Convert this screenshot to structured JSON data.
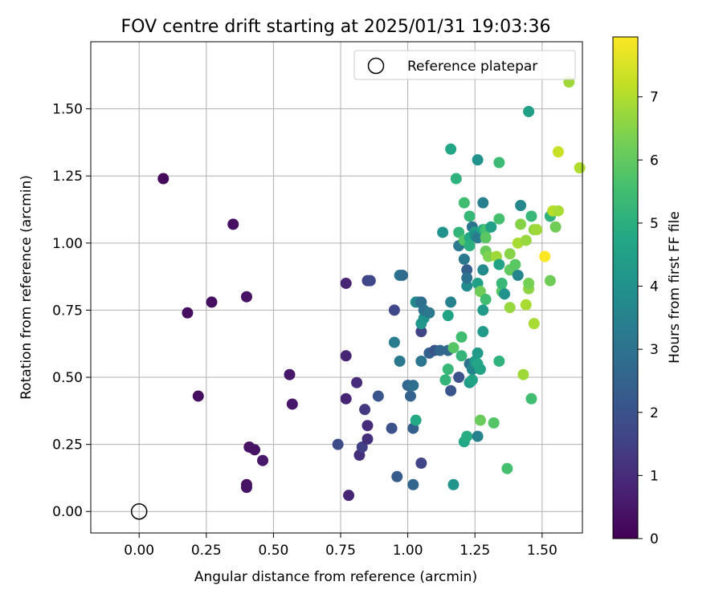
{
  "chart_data": {
    "type": "scatter",
    "title": "FOV centre drift starting at 2025/01/31 19:03:36",
    "xlabel": "Angular distance from reference (arcmin)",
    "ylabel": "Rotation from reference (arcmin)",
    "xlim": [
      -0.18,
      1.65
    ],
    "ylim": [
      -0.08,
      1.75
    ],
    "xticks": [
      "0.00",
      "0.25",
      "0.50",
      "0.75",
      "1.00",
      "1.25",
      "1.50"
    ],
    "yticks": [
      "0.00",
      "0.25",
      "0.50",
      "0.75",
      "1.00",
      "1.25",
      "1.50"
    ],
    "grid": true,
    "legend": {
      "placement": "top-right",
      "entries": [
        {
          "label": "Reference platepar",
          "marker": "open-circle",
          "x": 0.0,
          "y": 0.0
        }
      ]
    },
    "colorbar": {
      "label": "Hours from first FF file",
      "colormap": "viridis",
      "range": [
        0,
        7.95
      ],
      "ticks": [
        "0",
        "1",
        "2",
        "3",
        "4",
        "5",
        "6",
        "7"
      ]
    },
    "columns": [
      "x",
      "y",
      "hours"
    ],
    "points": [
      [
        0.09,
        1.24,
        0.2
      ],
      [
        0.35,
        1.07,
        0.3
      ],
      [
        0.18,
        0.74,
        0.3
      ],
      [
        0.27,
        0.78,
        0.3
      ],
      [
        0.4,
        0.8,
        0.4
      ],
      [
        0.22,
        0.43,
        0.3
      ],
      [
        0.4,
        0.1,
        0.4
      ],
      [
        0.4,
        0.09,
        0.4
      ],
      [
        0.41,
        0.24,
        0.4
      ],
      [
        0.43,
        0.23,
        0.4
      ],
      [
        0.46,
        0.19,
        0.5
      ],
      [
        0.56,
        0.51,
        0.5
      ],
      [
        0.57,
        0.4,
        0.5
      ],
      [
        0.77,
        0.85,
        0.8
      ],
      [
        0.77,
        0.58,
        0.8
      ],
      [
        0.77,
        0.42,
        0.8
      ],
      [
        0.78,
        0.06,
        0.8
      ],
      [
        0.81,
        0.48,
        1.0
      ],
      [
        0.82,
        0.21,
        1.1
      ],
      [
        0.83,
        0.24,
        1.5
      ],
      [
        0.84,
        0.38,
        1.3
      ],
      [
        0.85,
        0.32,
        1.0
      ],
      [
        0.85,
        0.27,
        1.1
      ],
      [
        0.85,
        0.86,
        1.6
      ],
      [
        0.86,
        0.86,
        1.7
      ],
      [
        0.74,
        0.25,
        1.8
      ],
      [
        0.89,
        0.43,
        2.1
      ],
      [
        0.94,
        0.31,
        2.0
      ],
      [
        0.95,
        0.75,
        1.7
      ],
      [
        0.96,
        0.13,
        2.3
      ],
      [
        0.95,
        0.63,
        3.3
      ],
      [
        0.97,
        0.88,
        3.1
      ],
      [
        0.98,
        0.88,
        2.8
      ],
      [
        0.97,
        0.56,
        3.2
      ],
      [
        1.0,
        0.47,
        2.6
      ],
      [
        1.01,
        0.43,
        2.5
      ],
      [
        1.02,
        0.47,
        2.9
      ],
      [
        1.02,
        0.31,
        2.4
      ],
      [
        1.02,
        0.1,
        2.6
      ],
      [
        1.03,
        0.78,
        3.8
      ],
      [
        1.04,
        0.78,
        3.6
      ],
      [
        1.05,
        0.78,
        2.9
      ],
      [
        1.05,
        0.18,
        1.6
      ],
      [
        1.05,
        0.67,
        1.6
      ],
      [
        1.05,
        0.7,
        4.2
      ],
      [
        1.06,
        0.72,
        4.1
      ],
      [
        1.05,
        0.56,
        3.1
      ],
      [
        1.06,
        0.75,
        3.0
      ],
      [
        1.08,
        0.74,
        3.2
      ],
      [
        1.08,
        0.59,
        2.4
      ],
      [
        1.03,
        0.34,
        4.8
      ],
      [
        1.1,
        0.6,
        2.1
      ],
      [
        1.12,
        0.6,
        2.6
      ],
      [
        1.13,
        1.04,
        4.0
      ],
      [
        1.14,
        0.49,
        5.2
      ],
      [
        1.15,
        0.53,
        5.3
      ],
      [
        1.15,
        0.73,
        4.6
      ],
      [
        1.15,
        0.6,
        2.6
      ],
      [
        1.16,
        1.35,
        4.7
      ],
      [
        1.16,
        0.45,
        2.1
      ],
      [
        1.16,
        0.78,
        3.5
      ],
      [
        1.17,
        0.1,
        4.1
      ],
      [
        1.17,
        0.61,
        5.8
      ],
      [
        1.18,
        1.24,
        5.1
      ],
      [
        1.19,
        1.04,
        5.2
      ],
      [
        1.19,
        0.99,
        3.2
      ],
      [
        1.19,
        0.5,
        2.0
      ],
      [
        1.2,
        0.65,
        5.5
      ],
      [
        1.2,
        0.58,
        5.2
      ],
      [
        1.21,
        1.15,
        5.5
      ],
      [
        1.21,
        1.01,
        5.8
      ],
      [
        1.21,
        0.94,
        3.2
      ],
      [
        1.21,
        0.26,
        4.7
      ],
      [
        1.22,
        0.9,
        2.4
      ],
      [
        1.22,
        0.84,
        3.8
      ],
      [
        1.22,
        0.28,
        4.9
      ],
      [
        1.22,
        0.87,
        3.0
      ],
      [
        1.23,
        1.1,
        5.3
      ],
      [
        1.23,
        1.02,
        4.8
      ],
      [
        1.23,
        0.99,
        5.0
      ],
      [
        1.23,
        0.55,
        3.0
      ],
      [
        1.23,
        0.48,
        4.3
      ],
      [
        1.24,
        1.06,
        3.1
      ],
      [
        1.24,
        0.53,
        3.6
      ],
      [
        1.24,
        0.49,
        4.6
      ],
      [
        1.25,
        1.04,
        4.6
      ],
      [
        1.25,
        1.03,
        4.0
      ],
      [
        1.25,
        0.56,
        4.3
      ],
      [
        1.26,
        1.31,
        4.0
      ],
      [
        1.26,
        1.02,
        3.3
      ],
      [
        1.26,
        0.85,
        4.5
      ],
      [
        1.26,
        0.59,
        4.3
      ],
      [
        1.26,
        0.55,
        4.7
      ],
      [
        1.26,
        0.28,
        3.5
      ],
      [
        1.27,
        0.34,
        6.1
      ],
      [
        1.27,
        0.82,
        6.2
      ],
      [
        1.27,
        0.53,
        4.6
      ],
      [
        1.28,
        1.15,
        3.4
      ],
      [
        1.28,
        1.05,
        4.8
      ],
      [
        1.28,
        0.9,
        3.8
      ],
      [
        1.28,
        0.75,
        4.3
      ],
      [
        1.28,
        0.67,
        4.3
      ],
      [
        1.29,
        1.05,
        5.6
      ],
      [
        1.29,
        1.02,
        5.9
      ],
      [
        1.29,
        0.97,
        6.1
      ],
      [
        1.29,
        0.79,
        5.5
      ],
      [
        1.3,
        0.95,
        6.4
      ],
      [
        1.31,
        1.06,
        4.5
      ],
      [
        1.32,
        0.33,
        5.8
      ],
      [
        1.33,
        0.95,
        6.8
      ],
      [
        1.34,
        0.92,
        4.6
      ],
      [
        1.34,
        0.56,
        5.1
      ],
      [
        1.34,
        1.3,
        5.4
      ],
      [
        1.34,
        1.09,
        5.6
      ],
      [
        1.35,
        0.82,
        5.8
      ],
      [
        1.35,
        0.85,
        5.3
      ],
      [
        1.36,
        0.81,
        4.0
      ],
      [
        1.37,
        0.16,
        5.6
      ],
      [
        1.38,
        0.96,
        6.5
      ],
      [
        1.38,
        0.76,
        6.7
      ],
      [
        1.38,
        0.9,
        6.0
      ],
      [
        1.4,
        0.92,
        5.9
      ],
      [
        1.41,
        0.88,
        3.6
      ],
      [
        1.41,
        1.0,
        6.9
      ],
      [
        1.42,
        1.14,
        3.7
      ],
      [
        1.42,
        1.07,
        6.5
      ],
      [
        1.43,
        0.51,
        6.8
      ],
      [
        1.44,
        1.01,
        6.7
      ],
      [
        1.44,
        0.77,
        6.9
      ],
      [
        1.45,
        0.83,
        6.6
      ],
      [
        1.45,
        0.85,
        6.3
      ],
      [
        1.45,
        1.49,
        4.5
      ],
      [
        1.46,
        1.1,
        5.3
      ],
      [
        1.46,
        0.42,
        5.5
      ],
      [
        1.47,
        1.05,
        6.6
      ],
      [
        1.47,
        0.7,
        6.9
      ],
      [
        1.48,
        1.05,
        6.8
      ],
      [
        1.51,
        0.95,
        7.95
      ],
      [
        1.53,
        0.86,
        6.2
      ],
      [
        1.53,
        1.1,
        5.1
      ],
      [
        1.54,
        1.12,
        7.1
      ],
      [
        1.55,
        1.06,
        6.2
      ],
      [
        1.56,
        1.12,
        6.9
      ],
      [
        1.56,
        1.34,
        7.3
      ],
      [
        1.6,
        1.6,
        6.8
      ],
      [
        1.64,
        1.28,
        7.0
      ]
    ]
  }
}
